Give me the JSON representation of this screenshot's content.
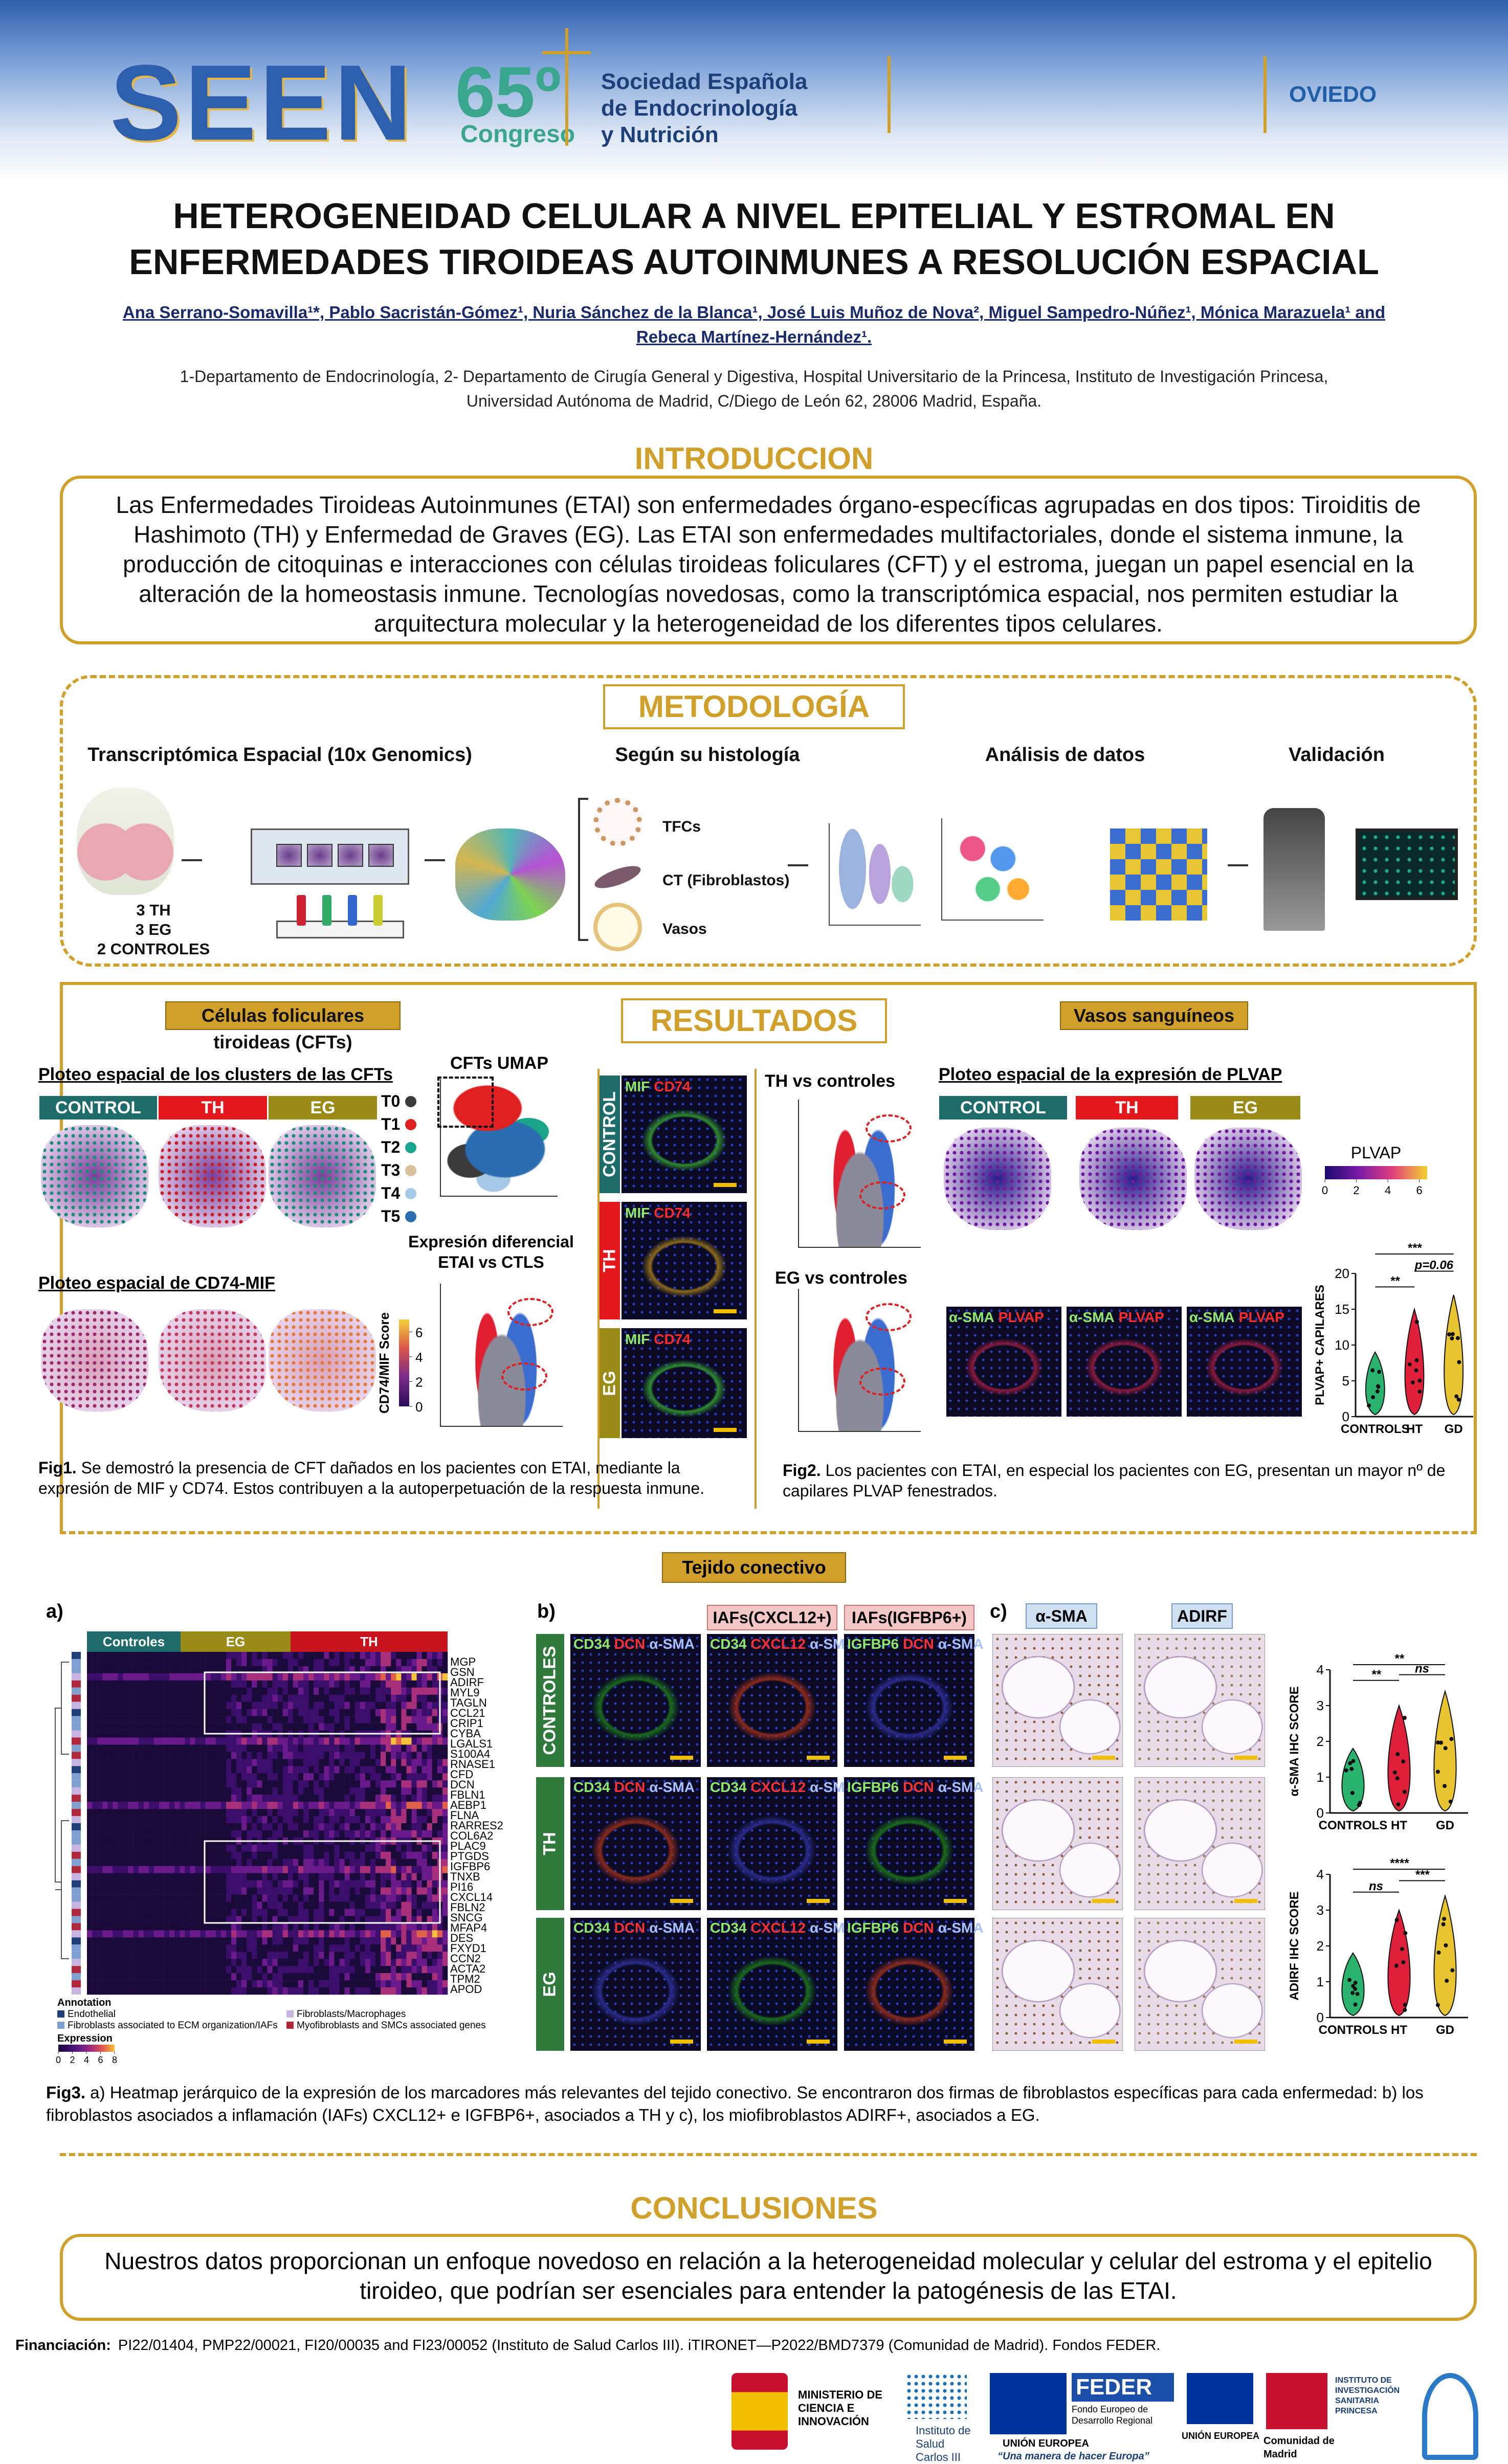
{
  "header": {
    "logo": "SEEN",
    "edition": "65º",
    "congress": "Congreso",
    "society": [
      "Sociedad Española",
      "de Endocrinología",
      "y Nutrición"
    ],
    "city": "OVIEDO"
  },
  "title": [
    "HETEROGENEIDAD CELULAR A NIVEL EPITELIAL Y ESTROMAL EN",
    "ENFERMEDADES TIROIDEAS AUTOINMUNES A RESOLUCIÓN ESPACIAL"
  ],
  "authors": [
    "Ana Serrano-Somavilla¹*, Pablo Sacristán-Gómez¹, Nuria Sánchez de la Blanca¹, José Luis Muñoz de Nova², Miguel Sampedro-Núñez¹, Mónica Marazuela¹ and",
    "Rebeca Martínez-Hernández¹."
  ],
  "affiliation": [
    "1-Departamento de Endocrinología, 2- Departamento de Cirugía General y Digestiva, Hospital Universitario de la Princesa, Instituto de Investigación Princesa,",
    "Universidad Autónoma de Madrid, C/Diego de León 62, 28006 Madrid, España."
  ],
  "introduction": {
    "heading": "INTRODUCCION",
    "text": "Las Enfermedades Tiroideas Autoinmunes (ETAI) son enfermedades órgano-específicas agrupadas en dos tipos: Tiroiditis de Hashimoto (TH) y Enfermedad de Graves (EG). Las ETAI son enfermedades multifactoriales, donde el sistema inmune, la producción de citoquinas e interacciones con células tiroideas foliculares (CFT) y el estroma, juegan un papel esencial en la alteración de la homeostasis inmune. Tecnologías novedosas, como la transcriptómica espacial, nos permiten estudiar la arquitectura molecular y la heterogeneidad de los diferentes tipos celulares."
  },
  "methods": {
    "heading": "METODOLOGÍA",
    "steps": [
      "Transcriptómica Espacial (10x Genomics)",
      "Según su histología",
      "Análisis de datos",
      "Validación"
    ],
    "samples": [
      "3 TH",
      "3 EG",
      "2 CONTROLES"
    ],
    "cell_types": [
      "TFCs",
      "CT (Fibroblastos)",
      "Vasos"
    ]
  },
  "results": {
    "heading": "RESULTADOS",
    "cft": {
      "title": "Células foliculares tiroideas (CFTs)",
      "clusters_title": "Ploteo espacial de los clusters de las CFTs",
      "groups": [
        {
          "name": "CONTROL",
          "color": "#1d6b6b"
        },
        {
          "name": "TH",
          "color": "#e3171c"
        },
        {
          "name": "EG",
          "color": "#9a8a16"
        }
      ],
      "clusters": [
        {
          "name": "T0",
          "color": "#3b3b3b"
        },
        {
          "name": "T1",
          "color": "#e02020"
        },
        {
          "name": "T2",
          "color": "#1aa58a"
        },
        {
          "name": "T3",
          "color": "#d9c29a"
        },
        {
          "name": "T4",
          "color": "#a8c8e8"
        },
        {
          "name": "T5",
          "color": "#2a6db0"
        }
      ],
      "umap_title": "CFTs UMAP",
      "cd74_title": "Ploteo espacial de CD74-MIF",
      "score_label": "CD74/MIF Score",
      "score_lim": [
        0,
        7
      ],
      "score_ticks": [
        0,
        2,
        4,
        6
      ],
      "de_title": [
        "Expresión diferencial",
        "ETAI vs CTLS"
      ],
      "caption": {
        "label": "Fig1.",
        "text": " Se demostró la presencia de CFT dañados en los pacientes con ETAI, mediante la expresión de MIF y CD74. Estos  contribuyen a la autoperpetuación de la respuesta inmune."
      }
    },
    "if": {
      "rows": [
        "CONTROL",
        "TH",
        "EG"
      ],
      "stains": [
        {
          "text": "MIF",
          "color": "#8ee86a"
        },
        {
          "text": "CD74",
          "color": "#ff2a2a"
        }
      ]
    },
    "volcano": {
      "th": "TH vs controles",
      "eg": "EG vs controles"
    },
    "vessels": {
      "title": "Vasos sanguíneos",
      "plvap_title": "Ploteo espacial de la expresión de PLVAP",
      "groups": [
        {
          "name": "CONTROL",
          "color": "#1d6b6b"
        },
        {
          "name": "TH",
          "color": "#e3171c"
        },
        {
          "name": "EG",
          "color": "#9a8a16"
        }
      ],
      "colorbar_label": "PLVAP",
      "colorbar_lim": [
        0,
        6.5
      ],
      "colorbar_ticks": [
        0,
        2,
        4,
        6
      ],
      "stains": [
        {
          "text": "α-SMA",
          "color": "#8ee86a"
        },
        {
          "text": "PLVAP",
          "color": "#ff2a2a"
        }
      ],
      "chart": {
        "ylabel": "PLVAP+ CAPILARES",
        "categories": [
          "CONTROLS",
          "HT",
          "GD"
        ],
        "colors": [
          "#2ab36f",
          "#e0203a",
          "#e8c530"
        ],
        "ylim": [
          0,
          20
        ],
        "yticks": [
          0,
          5,
          10,
          15,
          20
        ],
        "annotations": [
          "**",
          "***",
          "p=0.06"
        ]
      },
      "caption": {
        "label": "Fig2.",
        "text": " Los pacientes con ETAI, en especial los pacientes con EG, presentan un mayor nº de capilares PLVAP fenestrados."
      }
    }
  },
  "connective": {
    "title": "Tejido conectivo",
    "panels": [
      "a)",
      "b)",
      "c)"
    ],
    "heatmap": {
      "groups": [
        {
          "name": "Controles",
          "color": "#1d6b6b"
        },
        {
          "name": "EG",
          "color": "#9a8a16"
        },
        {
          "name": "TH",
          "color": "#c8141c"
        }
      ],
      "genes": [
        "MGP",
        "GSN",
        "ADIRF",
        "MYL9",
        "TAGLN",
        "CCL21",
        "CRIP1",
        "CYBA",
        "LGALS1",
        "S100A4",
        "RNASE1",
        "CFD",
        "DCN",
        "FBLN1",
        "AEBP1",
        "FLNA",
        "RARRES2",
        "COL6A2",
        "PLAC9",
        "PTGDS",
        "IGFBP6",
        "TNXB",
        "PI16",
        "CXCL14",
        "FBLN2",
        "SNCG",
        "MFAP4",
        "DES",
        "FXYD1",
        "CCN2",
        "ACTA2",
        "TPM2",
        "APOD"
      ],
      "annotation_title": "Annotation",
      "annotations": [
        {
          "name": "Endothelial",
          "color": "#1f3f7a"
        },
        {
          "name": "Fibroblasts associated to ECM organization/IAFs",
          "color": "#7fa0d0"
        },
        {
          "name": "Fibroblasts/Macrophages",
          "color": "#c8b4e0"
        },
        {
          "name": "Myofibroblasts and SMCs associated genes",
          "color": "#b0283c"
        }
      ],
      "expression_title": "Expression",
      "expression_lim": [
        0,
        8
      ],
      "expression_ticks": [
        0,
        2,
        4,
        6,
        8
      ]
    },
    "if": {
      "headers": [
        "IAFs(CXCL12+)",
        "IAFs(IGFBP6+)"
      ],
      "header_color": "#f4c7c7",
      "rows": [
        "CONTROLES",
        "TH",
        "EG"
      ],
      "row_color": "#2f7a3b",
      "columns": [
        [
          {
            "text": "CD34",
            "color": "#8ee86a"
          },
          {
            "text": "DCN",
            "color": "#ff3030"
          },
          {
            "text": "α-SMA",
            "color": "#a8c0ff"
          }
        ],
        [
          {
            "text": "CD34",
            "color": "#8ee86a"
          },
          {
            "text": "CXCL12",
            "color": "#ff3030"
          },
          {
            "text": "α-SMA",
            "color": "#a8c0ff"
          }
        ],
        [
          {
            "text": "IGFBP6",
            "color": "#8ee86a"
          },
          {
            "text": "DCN",
            "color": "#ff3030"
          },
          {
            "text": "α-SMA",
            "color": "#a8c0ff"
          }
        ]
      ]
    },
    "ihc": {
      "headers": [
        "α-SMA",
        "ADIRF"
      ],
      "header_color": "#cfe0f3",
      "charts": [
        {
          "ylabel": "α-SMA IHC SCORE",
          "categories": [
            "CONTROLS",
            "HT",
            "GD"
          ],
          "colors": [
            "#2ab36f",
            "#e0203a",
            "#e8c530"
          ],
          "ylim": [
            0,
            4
          ],
          "yticks": [
            0,
            1,
            2,
            3,
            4
          ],
          "annotations": [
            "**",
            "**",
            "ns"
          ]
        },
        {
          "ylabel": "ADIRF IHC SCORE",
          "categories": [
            "CONTROLS",
            "HT",
            "GD"
          ],
          "colors": [
            "#2ab36f",
            "#e0203a",
            "#e8c530"
          ],
          "ylim": [
            0,
            4
          ],
          "yticks": [
            0,
            1,
            2,
            3,
            4
          ],
          "annotations": [
            "ns",
            "****",
            "***"
          ]
        }
      ]
    },
    "caption": {
      "label": "Fig3.",
      "text": " a) Heatmap jerárquico de la expresión de los marcadores más relevantes del tejido conectivo. Se encontraron dos firmas de fibroblastos específicas para cada enfermedad: b) los fibroblastos asociados a inflamación (IAFs) CXCL12+ e IGFBP6+, asociados a TH y c), los miofibroblastos ADIRF+, asociados a EG."
    }
  },
  "conclusions": {
    "heading": "CONCLUSIONES",
    "text": "Nuestros datos proporcionan un enfoque novedoso en relación a la heterogeneidad molecular y celular del estroma y el epitelio tiroideo, que podrían ser esenciales para entender la patogénesis de las ETAI."
  },
  "funding": {
    "label": "Financiación:",
    "text": "PI22/01404, PMP22/00021, FI20/00035 and FI23/00052 (Instituto de Salud Carlos III). iTIRONET—P2022/BMD7379 (Comunidad de Madrid). Fondos FEDER."
  },
  "logos": [
    "MINISTERIO DE CIENCIA E INNOVACIÓN",
    "Instituto de Salud Carlos III",
    "FEDER",
    "Fondo Europeo de Desarrollo Regional",
    "UNIÓN EUROPEA",
    "“Una manera de hacer Europa”",
    "UNIÓN EUROPEA",
    "Comunidad de Madrid",
    "INSTITUTO DE INVESTIGACIÓN SANITARIA PRINCESA"
  ]
}
